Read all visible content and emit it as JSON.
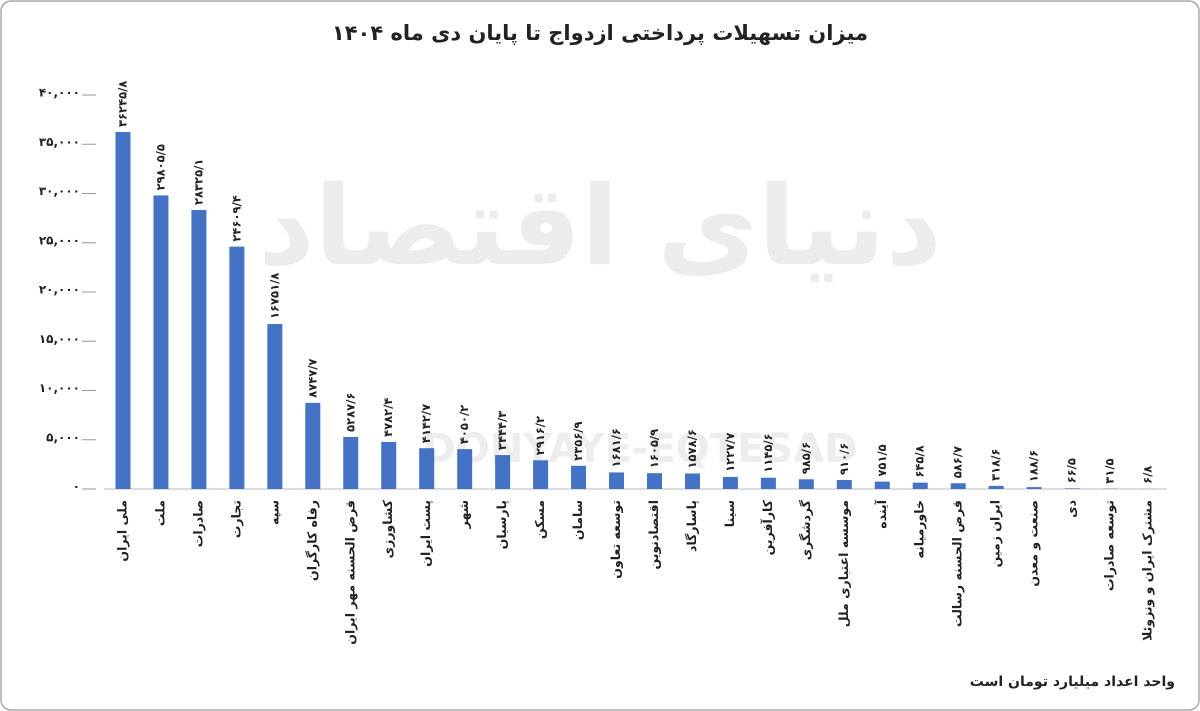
{
  "chart_data": {
    "type": "bar",
    "title": "میزان تسهیلات پرداختی ازدواج تا پایان دی ماه ۱۴۰۴",
    "footnote": "واحد اعداد میلیارد تومان است",
    "watermark": "دنیای اقتصاد",
    "watermark_latin": "DONYAYE-EQTESAD",
    "categories": [
      "ملی ایران",
      "ملت",
      "صادرات",
      "تجارت",
      "سپه",
      "رفاه کارگران",
      "قرض الحسنه مهر ایران",
      "کشاورزی",
      "پست ایران",
      "شهر",
      "پارسیان",
      "مسکن",
      "سامان",
      "توسعه تعاون",
      "اقتصادنوین",
      "پاسارگاد",
      "سینا",
      "کارآفرین",
      "گردشگری",
      "موسسه اعتباری ملل",
      "آینده",
      "خاورمیانه",
      "قرض الحسنه رسالت",
      "ایران زمین",
      "صنعت و معدن",
      "دی",
      "توسعه صادرات",
      "مشترک ایران و ونزوئلا"
    ],
    "values": [
      36245.8,
      29805.5,
      28325.1,
      24609.4,
      16751.8,
      8747.7,
      5287.6,
      4782.4,
      4142.7,
      4050.2,
      3444.3,
      2916.2,
      2356.9,
      1681.6,
      1605.9,
      1578.6,
      1227.7,
      1145.6,
      985.6,
      910.6,
      751.5,
      645.8,
      586.7,
      318.6,
      188.6,
      66.5,
      31.5,
      6.8
    ],
    "value_labels": [
      "۳۶۲۴۵/۸",
      "۲۹۸۰۵/۵",
      "۲۸۳۲۵/۱",
      "۲۴۶۰۹/۴",
      "۱۶۷۵۱/۸",
      "۸۷۴۷/۷",
      "۵۲۸۷/۶",
      "۴۷۸۲/۴",
      "۴۱۴۲/۷",
      "۴۰۵۰/۲",
      "۳۴۴۴/۳",
      "۲۹۱۶/۲",
      "۲۳۵۶/۹",
      "۱۶۸۱/۶",
      "۱۶۰۵/۹",
      "۱۵۷۸/۶",
      "۱۲۲۷/۷",
      "۱۱۴۵/۶",
      "۹۸۵/۶",
      "۹۱۰/۶",
      "۷۵۱/۵",
      "۶۴۵/۸",
      "۵۸۶/۷",
      "۳۱۸/۶",
      "۱۸۸/۶",
      "۶۶/۵",
      "۳۱/۵",
      "۶/۸"
    ],
    "color": "#4472c4",
    "ylim": [
      0,
      40000
    ],
    "yticks": [
      {
        "value": 0,
        "label": "۰"
      },
      {
        "value": 5000,
        "label": "۵,۰۰۰"
      },
      {
        "value": 10000,
        "label": "۱۰,۰۰۰"
      },
      {
        "value": 15000,
        "label": "۱۵,۰۰۰"
      },
      {
        "value": 20000,
        "label": "۲۰,۰۰۰"
      },
      {
        "value": 25000,
        "label": "۲۵,۰۰۰"
      },
      {
        "value": 30000,
        "label": "۳۰,۰۰۰"
      },
      {
        "value": 35000,
        "label": "۳۵,۰۰۰"
      },
      {
        "value": 40000,
        "label": "۴۰,۰۰۰"
      }
    ],
    "grid": false
  }
}
